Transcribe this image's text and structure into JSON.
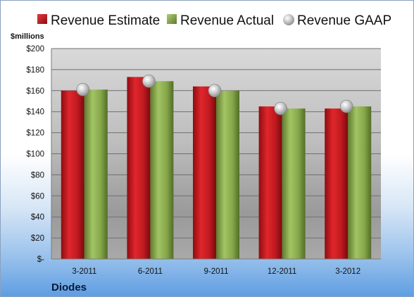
{
  "chart_data": {
    "type": "bar",
    "categories": [
      "3-2011",
      "6-2011",
      "9-2011",
      "12-2011",
      "3-2012"
    ],
    "series": [
      {
        "name": "Revenue Estimate",
        "kind": "bar",
        "color": "#c8141c",
        "values": [
          160,
          173,
          164,
          145,
          143
        ]
      },
      {
        "name": "Revenue Actual",
        "kind": "bar",
        "color": "#86a84a",
        "values": [
          161,
          169,
          160,
          143,
          145
        ]
      },
      {
        "name": "Revenue GAAP",
        "kind": "marker",
        "color": "#bfbfbf",
        "values": [
          161,
          169,
          160,
          143,
          145
        ]
      }
    ],
    "ylabel": "$millions",
    "ylim": [
      0,
      200
    ],
    "yticks": [
      0,
      20,
      40,
      60,
      80,
      100,
      120,
      140,
      160,
      180,
      200
    ],
    "ytick_labels": [
      "$-",
      "$20",
      "$40",
      "$60",
      "$80",
      "$100",
      "$120",
      "$140",
      "$160",
      "$180",
      "$200"
    ],
    "grid": true,
    "legend_position": "top",
    "footer": "Diodes"
  }
}
